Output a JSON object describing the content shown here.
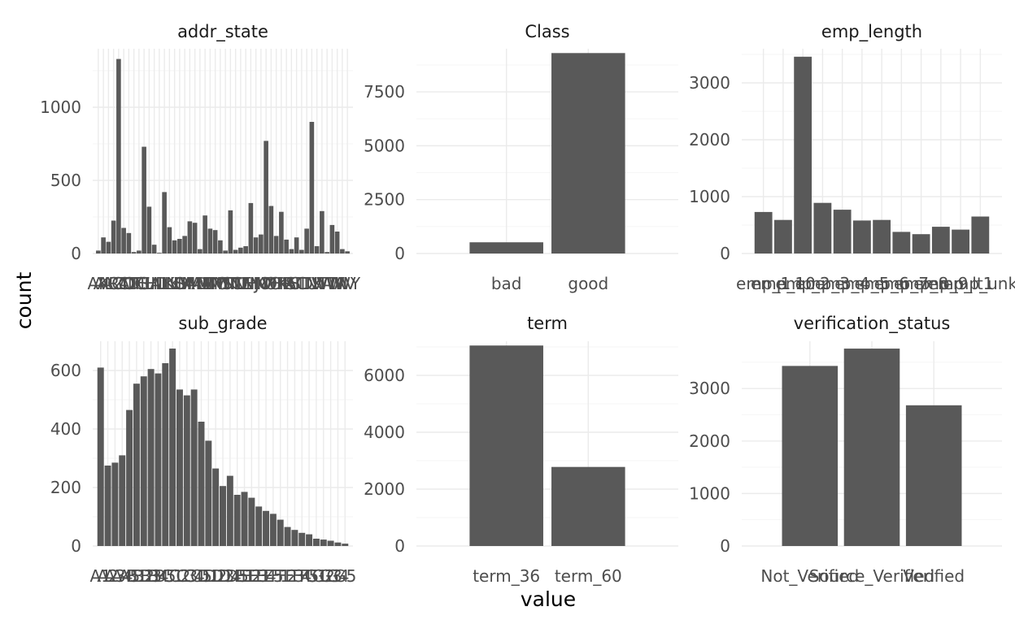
{
  "figure": {
    "xlabel": "value",
    "ylabel": "count",
    "bar_color": "#595959",
    "grid_color": "#ebebeb",
    "background": "#ffffff"
  },
  "chart_data": [
    {
      "type": "bar",
      "title": "addr_state",
      "categories": [
        "AK",
        "AL",
        "AR",
        "AZ",
        "CA",
        "CO",
        "CT",
        "DC",
        "DE",
        "FL",
        "GA",
        "HI",
        "ID",
        "IL",
        "IN",
        "KS",
        "KY",
        "LA",
        "MA",
        "MD",
        "ME",
        "MI",
        "MN",
        "MO",
        "MS",
        "MT",
        "NC",
        "ND",
        "NE",
        "NH",
        "NJ",
        "NM",
        "NV",
        "NY",
        "OH",
        "OK",
        "OR",
        "PA",
        "RI",
        "SC",
        "SD",
        "TN",
        "TX",
        "UT",
        "VA",
        "VT",
        "WA",
        "WI",
        "WV",
        "WY"
      ],
      "tick_labels": [
        "AK",
        "AL",
        "AR",
        "AZ",
        "CA",
        "CO",
        "CT",
        "DC",
        "DE",
        "FL",
        "GA",
        "HI",
        "ID",
        "IL",
        "IN",
        "KS",
        "KY",
        "LA",
        "MA",
        "MD",
        "ME",
        "MI",
        "MN",
        "MO",
        "MS",
        "MT",
        "NC",
        "ND",
        "NE",
        "NH",
        "NJ",
        "NM",
        "NV",
        "NY",
        "OH",
        "OK",
        "OR",
        "PA",
        "RI",
        "SC",
        "SD",
        "TN",
        "TX",
        "UT",
        "VA",
        "VT",
        "WA",
        "WI",
        "WV",
        "WY"
      ],
      "values": [
        20,
        110,
        80,
        225,
        1330,
        175,
        140,
        10,
        20,
        730,
        320,
        60,
        5,
        420,
        180,
        90,
        100,
        120,
        220,
        210,
        30,
        260,
        170,
        160,
        90,
        20,
        295,
        25,
        40,
        50,
        345,
        110,
        130,
        770,
        325,
        120,
        285,
        95,
        30,
        110,
        25,
        170,
        900,
        50,
        290,
        10,
        195,
        150,
        30,
        15
      ],
      "ylim": [
        0,
        1400
      ],
      "y_ticks": [
        0,
        500,
        1000
      ]
    },
    {
      "type": "bar",
      "title": "Class",
      "categories": [
        "bad",
        "good"
      ],
      "tick_labels": [
        "bad",
        "good"
      ],
      "values": [
        520,
        9300
      ],
      "ylim": [
        0,
        9500
      ],
      "y_ticks": [
        0,
        2500,
        5000,
        7500
      ]
    },
    {
      "type": "bar",
      "title": "emp_length",
      "categories": [
        "emp_1",
        "emp_10",
        "emp_2",
        "emp_3",
        "emp_4",
        "emp_5",
        "emp_6",
        "emp_7",
        "emp_8",
        "emp_9",
        "emp_lt1",
        "emp_unk"
      ],
      "tick_labels": [
        "emp_1",
        "emp_10",
        "emp_2",
        "emp_3",
        "emp_4",
        "emp_5",
        "emp_6",
        "emp_7",
        "emp_8",
        "emp_9",
        "emp_lt1",
        "emp_unk"
      ],
      "values": [
        730,
        590,
        3460,
        890,
        770,
        580,
        590,
        380,
        340,
        470,
        420,
        650
      ],
      "ylim": [
        0,
        3600
      ],
      "y_ticks": [
        0,
        1000,
        2000,
        3000
      ]
    },
    {
      "type": "bar",
      "title": "sub_grade",
      "categories": [
        "A1",
        "A2",
        "A3",
        "A4",
        "A5",
        "B1",
        "B2",
        "B3",
        "B4",
        "B5",
        "C1",
        "C2",
        "C3",
        "C4",
        "C5",
        "D1",
        "D2",
        "D3",
        "D4",
        "D5",
        "E1",
        "E2",
        "E3",
        "E4",
        "E5",
        "F1",
        "F2",
        "F3",
        "F4",
        "F5",
        "G1",
        "G2",
        "G3",
        "G4",
        "G5"
      ],
      "tick_labels": [
        "A1",
        "A2",
        "A3",
        "A4",
        "A5",
        "B1",
        "B2",
        "B3",
        "B4",
        "B5",
        "C1",
        "C2",
        "C3",
        "C4",
        "C5",
        "D1",
        "D2",
        "D3",
        "D4",
        "D5",
        "E1",
        "E2",
        "E3",
        "E4",
        "E5",
        "F1",
        "F2",
        "F3",
        "F4",
        "F5",
        "G1",
        "G2",
        "G3",
        "G4",
        "G5"
      ],
      "values": [
        610,
        275,
        285,
        310,
        465,
        555,
        580,
        605,
        590,
        625,
        675,
        535,
        515,
        535,
        425,
        360,
        265,
        205,
        240,
        175,
        185,
        165,
        135,
        120,
        110,
        90,
        65,
        55,
        45,
        40,
        25,
        22,
        18,
        12,
        8
      ],
      "ylim": [
        0,
        700
      ],
      "y_ticks": [
        0,
        200,
        400,
        600
      ]
    },
    {
      "type": "bar",
      "title": "term",
      "categories": [
        "term_36",
        "term_60"
      ],
      "tick_labels": [
        "term_36",
        "term_60"
      ],
      "values": [
        7050,
        2780
      ],
      "ylim": [
        0,
        7200
      ],
      "y_ticks": [
        0,
        2000,
        4000,
        6000
      ]
    },
    {
      "type": "bar",
      "title": "verification_status",
      "categories": [
        "Not_Verified",
        "Source_Verified",
        "Verified"
      ],
      "tick_labels": [
        "Not_Verified",
        "Source_Verified",
        "Verified"
      ],
      "values": [
        3430,
        3760,
        2680
      ],
      "ylim": [
        0,
        3900
      ],
      "y_ticks": [
        0,
        1000,
        2000,
        3000
      ]
    }
  ]
}
